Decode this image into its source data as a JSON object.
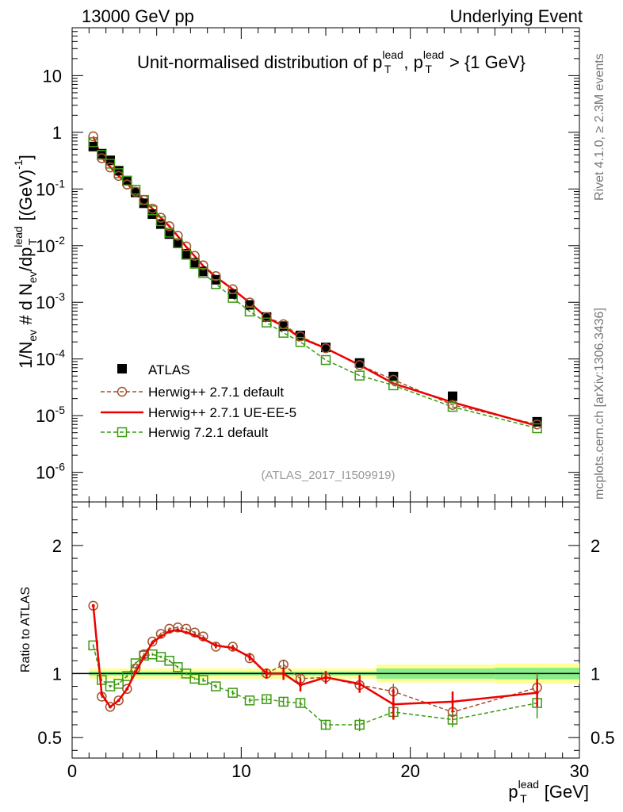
{
  "header": {
    "energy": "13000 GeV pp",
    "process": "Underlying Event"
  },
  "side_labels": {
    "rivet": "Rivet 4.1.0, ≥ 2.3M events",
    "mcplots": "mcplots.cern.ch [arXiv:1306.3436]"
  },
  "analysis_id": "(ATLAS_2017_I1509919)",
  "colors": {
    "data": "#000000",
    "herwigpp_default": "#a0522d",
    "herwigpp_ueee5": "#ee0000",
    "herwig7_default": "#3a9a10",
    "band_yellow": "#ffff9a",
    "band_green": "#88ee88"
  },
  "chart_data": [
    {
      "type": "scatter",
      "panel": "main",
      "title": {
        "main": "Unit-normalised distribution of p",
        "sup1": "lead",
        "sub1": "T",
        "mid": ", p",
        "sup2": "lead",
        "sub2": "T",
        "end": " > {1 GeV}"
      },
      "ylabel": {
        "a": "1/N",
        "a_sub": "ev",
        "b": " # d N",
        "b_sub": "ev",
        "c": "/dp",
        "c_sup": "lead",
        "c_sub": "T",
        "d": " [(GeV)",
        "d_sup": "-1",
        "e": "]"
      },
      "yscale": "log",
      "ylim": [
        3e-07,
        70
      ],
      "xlim": [
        0,
        30
      ],
      "yticks": [
        {
          "v": 1e-06,
          "base": "10",
          "exp": "-6"
        },
        {
          "v": 1e-05,
          "base": "10",
          "exp": "-5"
        },
        {
          "v": 0.0001,
          "base": "10",
          "exp": "-4"
        },
        {
          "v": 0.001,
          "base": "10",
          "exp": "-3"
        },
        {
          "v": 0.01,
          "base": "10",
          "exp": "-2"
        },
        {
          "v": 0.1,
          "base": "10",
          "exp": "-1"
        },
        {
          "v": 1,
          "base": "1",
          "exp": ""
        },
        {
          "v": 10,
          "base": "10",
          "exp": ""
        }
      ],
      "x": [
        1.25,
        1.75,
        2.25,
        2.75,
        3.25,
        3.75,
        4.25,
        4.75,
        5.25,
        5.75,
        6.25,
        6.75,
        7.25,
        7.75,
        8.5,
        9.5,
        10.5,
        11.5,
        12.5,
        13.5,
        15.0,
        17.0,
        19.0,
        22.5,
        27.5
      ],
      "series": [
        {
          "name": "ATLAS",
          "key": "data",
          "marker": "filled-square",
          "values": [
            0.56,
            0.42,
            0.32,
            0.21,
            0.14,
            0.087,
            0.056,
            0.036,
            0.024,
            0.016,
            0.011,
            0.0072,
            0.005,
            0.0035,
            0.0025,
            0.0014,
            0.0009,
            0.00055,
            0.00038,
            0.00026,
            0.00016,
            8.5e-05,
            4.9e-05,
            2.2e-05,
            7.8e-06
          ]
        },
        {
          "name": "Herwig++ 2.7.1 default",
          "key": "herwigpp_default",
          "marker": "open-circle",
          "line": "dashed",
          "values": [
            0.85,
            0.35,
            0.24,
            0.17,
            0.12,
            0.09,
            0.064,
            0.045,
            0.031,
            0.022,
            0.015,
            0.0097,
            0.0066,
            0.0045,
            0.0029,
            0.0017,
            0.00099,
            0.00055,
            0.00041,
            0.00025,
            0.000155,
            7.8e-05,
            4.3e-05,
            1.55e-05,
            7e-06
          ]
        },
        {
          "name": "Herwig++ 2.7.1 UE-EE-5",
          "key": "herwigpp_ueee5",
          "marker": "none",
          "line": "solid",
          "values": [
            0.84,
            0.36,
            0.245,
            0.17,
            0.125,
            0.088,
            0.063,
            0.045,
            0.031,
            0.022,
            0.0147,
            0.0095,
            0.0065,
            0.0044,
            0.0028,
            0.0017,
            0.00099,
            0.00054,
            0.00038,
            0.000235,
            0.000155,
            7.8e-05,
            3.7e-05,
            1.72e-05,
            6.6e-06
          ]
        },
        {
          "name": "Herwig 7.2.1 default",
          "key": "herwig7_default",
          "marker": "open-square",
          "line": "dashed",
          "values": [
            0.67,
            0.4,
            0.28,
            0.19,
            0.14,
            0.097,
            0.064,
            0.042,
            0.027,
            0.017,
            0.011,
            0.0069,
            0.0048,
            0.0033,
            0.0021,
            0.0012,
            0.00069,
            0.00044,
            0.00029,
            0.0002,
            9.58e-05,
            5.1e-05,
            3.43e-05,
            1.43e-05,
            6e-06
          ]
        }
      ],
      "legend_position": "bottom-left"
    },
    {
      "type": "line",
      "panel": "ratio",
      "ylabel": "Ratio to ATLAS",
      "xlabel": {
        "main": "p",
        "sup": "lead",
        "sub": "T",
        "unit": " [GeV]"
      },
      "ylim": [
        0.34,
        2.34
      ],
      "xlim": [
        0,
        30
      ],
      "yticks": [
        {
          "v": 0.5,
          "label": "0.5"
        },
        {
          "v": 1,
          "label": "1"
        },
        {
          "v": 2,
          "label": "2"
        }
      ],
      "xticks": [
        {
          "v": 0,
          "label": "0"
        },
        {
          "v": 10,
          "label": "10"
        },
        {
          "v": 20,
          "label": "20"
        },
        {
          "v": 30,
          "label": "30"
        }
      ],
      "uncertainty_bands": [
        {
          "x0": 1.0,
          "x1": 18.0,
          "yellow": [
            0.96,
            1.04
          ],
          "green": [
            0.985,
            1.015
          ]
        },
        {
          "x0": 18.0,
          "x1": 25.0,
          "yellow": [
            0.93,
            1.07
          ],
          "green": [
            0.96,
            1.04
          ]
        },
        {
          "x0": 25.0,
          "x1": 30.0,
          "yellow": [
            0.92,
            1.08
          ],
          "green": [
            0.955,
            1.045
          ]
        }
      ],
      "x": [
        1.25,
        1.75,
        2.25,
        2.75,
        3.25,
        3.75,
        4.25,
        4.75,
        5.25,
        5.75,
        6.25,
        6.75,
        7.25,
        7.75,
        8.5,
        9.5,
        10.5,
        11.5,
        12.5,
        13.5,
        15.0,
        17.0,
        19.0,
        22.5,
        27.5
      ],
      "series": [
        {
          "name": "Herwig++ 2.7.1 default",
          "key": "herwigpp_default",
          "values": [
            1.53,
            0.82,
            0.74,
            0.79,
            0.88,
            1.04,
            1.15,
            1.25,
            1.31,
            1.35,
            1.36,
            1.35,
            1.32,
            1.29,
            1.21,
            1.21,
            1.12,
            1.0,
            1.07,
            0.96,
            0.97,
            0.91,
            0.86,
            0.7,
            0.89
          ],
          "errors": [
            0.01,
            0.01,
            0.01,
            0.01,
            0.01,
            0.01,
            0.01,
            0.01,
            0.01,
            0.01,
            0.01,
            0.01,
            0.01,
            0.01,
            0.015,
            0.015,
            0.02,
            0.03,
            0.04,
            0.03,
            0.03,
            0.04,
            0.06,
            0.08,
            0.12
          ]
        },
        {
          "name": "Herwig++ 2.7.1 UE-EE-5",
          "key": "herwigpp_ueee5",
          "values": [
            1.53,
            0.84,
            0.74,
            0.79,
            0.88,
            1.01,
            1.13,
            1.24,
            1.29,
            1.33,
            1.34,
            1.32,
            1.3,
            1.27,
            1.22,
            1.2,
            1.13,
            1.0,
            1.0,
            0.91,
            0.97,
            0.92,
            0.76,
            0.78,
            0.85
          ],
          "errors": [
            0.01,
            0.01,
            0.01,
            0.01,
            0.01,
            0.01,
            0.01,
            0.01,
            0.01,
            0.01,
            0.01,
            0.01,
            0.01,
            0.015,
            0.02,
            0.02,
            0.03,
            0.04,
            0.05,
            0.05,
            0.05,
            0.07,
            0.12,
            0.08,
            0.11
          ]
        },
        {
          "name": "Herwig 7.2.1 default",
          "key": "herwig7_default",
          "values": [
            1.22,
            0.95,
            0.9,
            0.92,
            0.98,
            1.08,
            1.14,
            1.15,
            1.13,
            1.1,
            1.05,
            1.0,
            0.96,
            0.95,
            0.9,
            0.85,
            0.79,
            0.8,
            0.78,
            0.77,
            0.6,
            0.6,
            0.7,
            0.64,
            0.77
          ],
          "errors": [
            0.01,
            0.01,
            0.01,
            0.01,
            0.01,
            0.01,
            0.01,
            0.01,
            0.01,
            0.01,
            0.01,
            0.01,
            0.01,
            0.015,
            0.015,
            0.02,
            0.02,
            0.025,
            0.03,
            0.03,
            0.04,
            0.05,
            0.05,
            0.06,
            0.12
          ]
        }
      ]
    }
  ]
}
